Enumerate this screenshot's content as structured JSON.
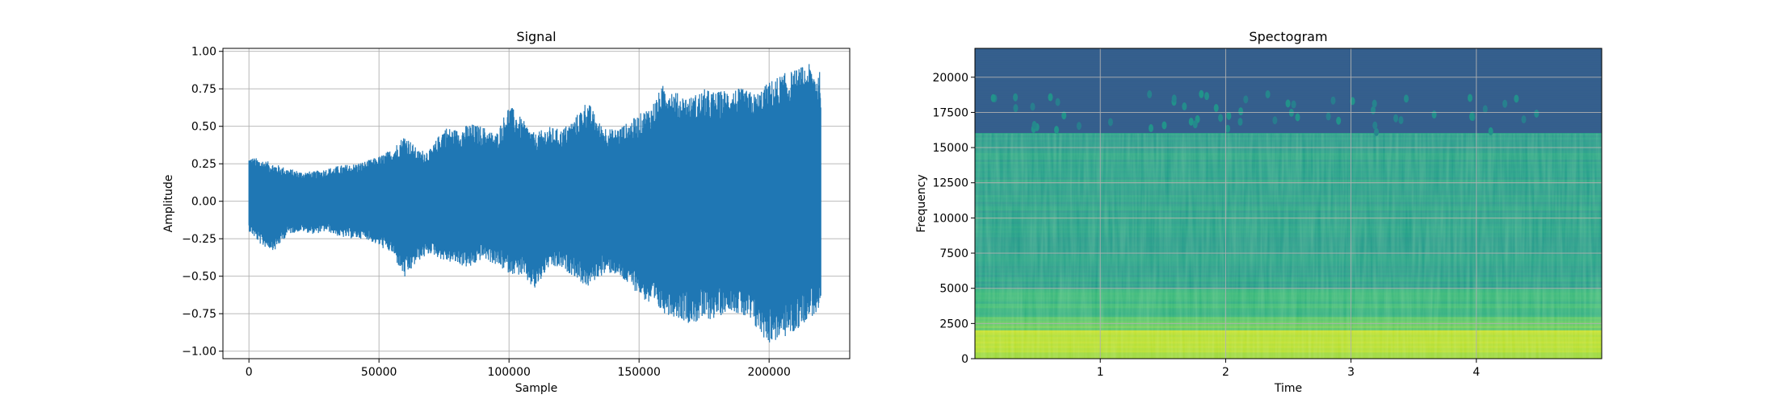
{
  "chart_data": [
    {
      "type": "line",
      "title": "Signal",
      "xlabel": "Sample",
      "ylabel": "Amplitude",
      "xlim": [
        -10000,
        231000
      ],
      "ylim": [
        -1.05,
        1.02
      ],
      "xticks": [
        0,
        50000,
        100000,
        150000,
        200000
      ],
      "xtick_labels": [
        "0",
        "50000",
        "100000",
        "150000",
        "200000"
      ],
      "yticks": [
        -1.0,
        -0.75,
        -0.5,
        -0.25,
        0.0,
        0.25,
        0.5,
        0.75,
        1.0
      ],
      "ytick_labels": [
        "−1.00",
        "−0.75",
        "−0.50",
        "−0.25",
        "0.00",
        "0.25",
        "0.50",
        "0.75",
        "1.00"
      ],
      "grid": true,
      "color": "#1f77b4",
      "series": [
        {
          "x": [
            0,
            5000,
            10000,
            15000,
            20000,
            25000,
            30000,
            35000,
            40000,
            45000,
            50000,
            55000,
            60000,
            65000,
            70000,
            75000,
            80000,
            85000,
            90000,
            95000,
            100000,
            105000,
            110000,
            115000,
            120000,
            125000,
            130000,
            135000,
            140000,
            145000,
            150000,
            155000,
            160000,
            165000,
            170000,
            175000,
            180000,
            185000,
            190000,
            195000,
            200000,
            205000,
            210000,
            215000,
            220000
          ],
          "upper": [
            0.3,
            0.28,
            0.25,
            0.22,
            0.2,
            0.2,
            0.22,
            0.24,
            0.25,
            0.27,
            0.3,
            0.35,
            0.45,
            0.34,
            0.35,
            0.5,
            0.48,
            0.52,
            0.5,
            0.45,
            0.65,
            0.55,
            0.45,
            0.5,
            0.48,
            0.55,
            0.68,
            0.52,
            0.48,
            0.52,
            0.58,
            0.65,
            0.8,
            0.72,
            0.7,
            0.75,
            0.73,
            0.76,
            0.75,
            0.72,
            0.8,
            0.85,
            0.88,
            0.92,
            0.86
          ],
          "lower": [
            -0.2,
            -0.3,
            -0.33,
            -0.22,
            -0.2,
            -0.22,
            -0.2,
            -0.24,
            -0.25,
            -0.25,
            -0.3,
            -0.35,
            -0.52,
            -0.4,
            -0.35,
            -0.4,
            -0.42,
            -0.45,
            -0.38,
            -0.43,
            -0.48,
            -0.5,
            -0.6,
            -0.45,
            -0.45,
            -0.5,
            -0.58,
            -0.5,
            -0.48,
            -0.55,
            -0.62,
            -0.72,
            -0.75,
            -0.78,
            -0.82,
            -0.8,
            -0.78,
            -0.72,
            -0.78,
            -0.86,
            -0.95,
            -0.92,
            -0.88,
            -0.78,
            -0.75
          ]
        }
      ]
    },
    {
      "type": "heatmap",
      "title": "Spectogram",
      "xlabel": "Time",
      "ylabel": "Frequency",
      "xlim": [
        0,
        5.0
      ],
      "ylim": [
        0,
        22050
      ],
      "xticks": [
        1,
        2,
        3,
        4
      ],
      "xtick_labels": [
        "1",
        "2",
        "3",
        "4"
      ],
      "yticks": [
        0,
        2500,
        5000,
        7500,
        10000,
        12500,
        15000,
        17500,
        20000
      ],
      "ytick_labels": [
        "0",
        "2500",
        "5000",
        "7500",
        "10000",
        "12500",
        "15000",
        "17500",
        "20000"
      ],
      "grid": true,
      "colormap": "viridis",
      "cutoff_frequency": 16000,
      "bands": [
        {
          "from": 16000,
          "to": 22050,
          "level": 0.3
        },
        {
          "from": 5000,
          "to": 16000,
          "level": 0.55
        },
        {
          "from": 3000,
          "to": 5000,
          "level": 0.65
        },
        {
          "from": 2000,
          "to": 3000,
          "level": 0.75
        },
        {
          "from": 0,
          "to": 2000,
          "level": 0.88
        }
      ]
    }
  ]
}
